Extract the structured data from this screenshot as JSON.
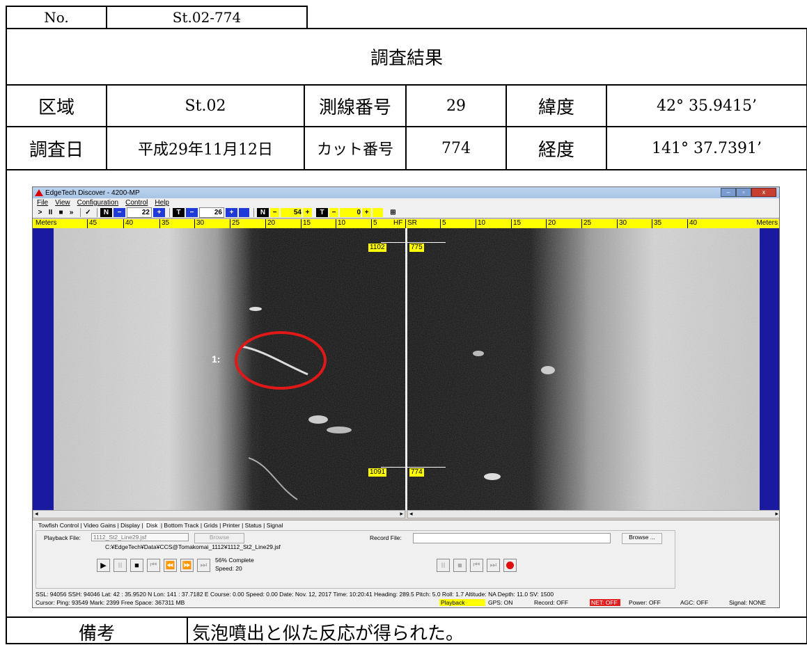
{
  "doc": {
    "no_label": "No.",
    "no_value": "St.02-774",
    "heading": "調査結果",
    "row1": {
      "l1": "区域",
      "v1": "St.02",
      "l2": "測線番号",
      "v2": "29",
      "l3": "緯度",
      "v3": "42° 35.9415’"
    },
    "row2": {
      "l1": "調査日",
      "v1": "平成29年11月12日",
      "l2": "カット番号",
      "v2": "774",
      "l3": "経度",
      "v3": "141° 37.7391’"
    },
    "remarks_label": "備考",
    "remarks_value": "気泡噴出と似た反応が得られた。"
  },
  "app": {
    "title": "EdgeTech Discover - 4200-MP",
    "menu": [
      "File",
      "View",
      "Configuration",
      "Control",
      "Help"
    ],
    "toolbar": {
      "play": ">",
      "pause": "II",
      "stop": "■",
      "fast": "»",
      "check": "✓",
      "n1_label": "N",
      "minus": "−",
      "plus": "+",
      "n1_value": "22",
      "t1_label": "T",
      "t1_value": "26",
      "n2_label": "N",
      "n2_value": "54",
      "t2_label": "T",
      "t2_value": "0"
    },
    "ruler": {
      "left_unit": "Meters",
      "right_unit": "Meters",
      "left_ticks": [
        "45",
        "40",
        "35",
        "30",
        "25",
        "20",
        "15",
        "10",
        "5",
        "HF"
      ],
      "right_ticks": [
        "SR",
        "5",
        "10",
        "15",
        "20",
        "25",
        "30",
        "35",
        "40"
      ]
    },
    "markers": {
      "top_left": "1102",
      "top_right": "775",
      "bottom_left": "1091",
      "bottom_right": "774"
    },
    "target_label": "1:",
    "tabs": [
      "Towfish Control",
      "Video Gains",
      "Display",
      "Disk",
      "Bottom Track",
      "Grids",
      "Printer",
      "Status",
      "Signal"
    ],
    "playback_label": "Playback File:",
    "playback_value": "1112_St2_Line29.jsf",
    "browse_label": "Browse",
    "record_label": "Record File:",
    "browse2_label": "Browse ...",
    "path": "C:¥EdgeTech¥Data¥CCS@Tomakomai_1112¥1112_St2_Line29.jsf",
    "progress": "56% Complete",
    "speed": "Speed: 20",
    "status_line1": "SSL: 94056  SSH: 94046  Lat:  42 : 35.9520 N  Lon:  141 : 37.7182 E  Course: 0.00  Speed: 0.00  Date: Nov. 12, 2017  Time: 10:20:41  Heading: 289.5  Pitch:  5.0  Roll:  1.7  Altitude: NA  Depth:  11.0   SV:  1500",
    "status_line2": "Cursor:  Ping:  93549  Mark:  2399       Free Space: 367311 MB",
    "indicators": {
      "playback": "Playback",
      "gps": "GPS: ON",
      "record": "Record: OFF",
      "net": "NET: OFF",
      "power": "Power: OFF",
      "agc": "AGC: OFF",
      "signal": "Signal: NONE"
    },
    "colors": {
      "ruler": "#ffff00",
      "net_bg": "#e02020",
      "record_btn": "#e01010",
      "circle": "#e01818",
      "scroll_blue": "#1a1aa0"
    }
  }
}
